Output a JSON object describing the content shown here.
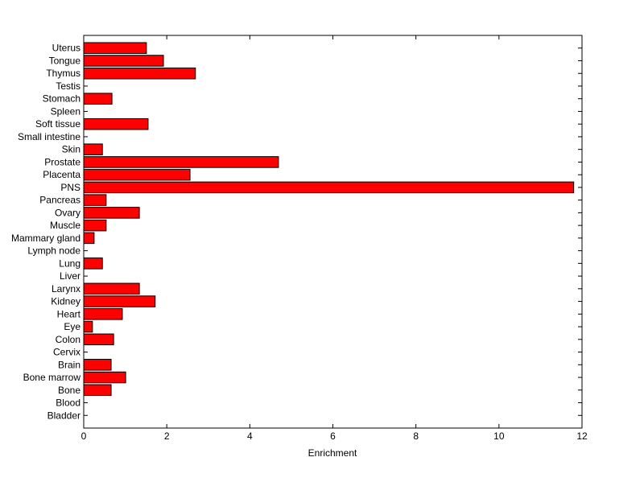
{
  "chart_data": {
    "type": "barh",
    "xlabel": "Enrichment",
    "categories": [
      "Bladder",
      "Blood",
      "Bone",
      "Bone marrow",
      "Brain",
      "Cervix",
      "Colon",
      "Eye",
      "Heart",
      "Kidney",
      "Larynx",
      "Liver",
      "Lung",
      "Lymph node",
      "Mammary gland",
      "Muscle",
      "Ovary",
      "Pancreas",
      "PNS",
      "Placenta",
      "Prostate",
      "Skin",
      "Small intestine",
      "Soft tissue",
      "Spleen",
      "Stomach",
      "Testis",
      "Thymus",
      "Tongue",
      "Uterus"
    ],
    "values": [
      0,
      0,
      0.66,
      1.01,
      0.66,
      0,
      0.72,
      0.21,
      0.93,
      1.72,
      1.34,
      0,
      0.45,
      0,
      0.25,
      0.54,
      1.34,
      0.54,
      11.8,
      2.56,
      4.69,
      0.45,
      0,
      1.55,
      0,
      0.68,
      0,
      2.69,
      1.92,
      1.51
    ],
    "color": "#ff0000",
    "xlim": [
      0,
      12
    ],
    "xticks": [
      0,
      2,
      4,
      6,
      8,
      10,
      12
    ],
    "grid": false
  }
}
